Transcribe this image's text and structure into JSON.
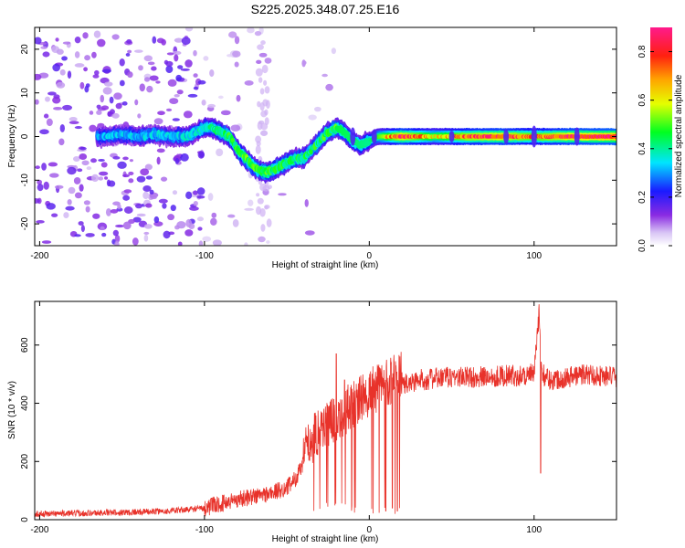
{
  "title": "S225.2025.348.07.25.E16",
  "colors": {
    "snr_line": "#e8322a",
    "frame": "#000000"
  },
  "chart_data": [
    {
      "type": "heatmap",
      "title": "S225.2025.348.07.25.E16",
      "xlabel": "Height of straight line (km)",
      "ylabel": "Frequency (Hz)",
      "xlim": [
        -203,
        150
      ],
      "ylim": [
        -25,
        25
      ],
      "x_ticks": [
        -200,
        -100,
        0,
        100
      ],
      "x_tick_labels": [
        "-200",
        "-100",
        "0",
        "100"
      ],
      "y_ticks": [
        -20,
        -10,
        0,
        10,
        20
      ],
      "y_tick_labels": [
        "-20",
        "-10",
        "0",
        "10",
        "20"
      ],
      "colorbar": {
        "label": "Normalized spectral amplitude",
        "range": [
          0,
          0.9
        ],
        "ticks": [
          0,
          0.2,
          0.4,
          0.6,
          0.8
        ],
        "tick_labels": [
          "0.0",
          "0.2",
          "0.4",
          "0.6",
          "0.8"
        ],
        "colormap": "rainbow (white-violet-blue-cyan-green-yellow-orange-red-pink)"
      },
      "ridge_frequency": {
        "x": [
          -160,
          -150,
          -140,
          -130,
          -120,
          -110,
          -100,
          -95,
          -90,
          -85,
          -80,
          -75,
          -70,
          -65,
          -60,
          -55,
          -50,
          -45,
          -40,
          -35,
          -30,
          -25,
          -20,
          -15,
          -10,
          -5,
          0,
          5,
          10,
          20,
          40,
          60,
          80,
          100,
          120,
          150
        ],
        "y": [
          0,
          0.5,
          0,
          0.5,
          0,
          0,
          2,
          2,
          1,
          0,
          -3,
          -5,
          -7,
          -8,
          -8,
          -7,
          -6,
          -5,
          -5,
          -3,
          -1,
          1,
          2,
          1,
          -1,
          -2,
          -1,
          0,
          0,
          0,
          0,
          0,
          0,
          0,
          0,
          0
        ]
      },
      "ridge_amplitude": {
        "x": [
          -200,
          -160,
          -120,
          -100,
          -80,
          -60,
          -40,
          -20,
          0,
          20,
          40,
          60,
          80,
          100,
          120,
          150
        ],
        "y": [
          0.15,
          0.35,
          0.35,
          0.4,
          0.5,
          0.5,
          0.45,
          0.5,
          0.45,
          0.8,
          0.6,
          0.75,
          0.8,
          0.7,
          0.8,
          0.85
        ]
      }
    },
    {
      "type": "line",
      "xlabel": "Height of straight line (km)",
      "ylabel": "SNR (10 * v/v)",
      "xlim": [
        -203,
        150
      ],
      "ylim": [
        0,
        750
      ],
      "x_ticks": [
        -200,
        -100,
        0,
        100
      ],
      "x_tick_labels": [
        "-200",
        "-100",
        "0",
        "100"
      ],
      "y_ticks": [
        0,
        200,
        400,
        600
      ],
      "y_tick_labels": [
        "0",
        "200",
        "400",
        "600"
      ],
      "series": [
        {
          "name": "SNR",
          "x": [
            -203,
            -180,
            -150,
            -120,
            -100,
            -90,
            -80,
            -70,
            -60,
            -50,
            -45,
            -40,
            -35,
            -30,
            -25,
            -20,
            -15,
            -10,
            -5,
            0,
            5,
            10,
            15,
            20,
            25,
            30,
            40,
            50,
            60,
            70,
            80,
            90,
            100,
            103,
            105,
            110,
            120,
            130,
            140,
            150
          ],
          "y": [
            20,
            22,
            25,
            30,
            40,
            55,
            70,
            80,
            90,
            110,
            140,
            190,
            240,
            280,
            300,
            320,
            340,
            360,
            380,
            400,
            420,
            440,
            450,
            460,
            470,
            480,
            485,
            490,
            490,
            490,
            495,
            495,
            500,
            700,
            500,
            480,
            490,
            500,
            495,
            490
          ]
        }
      ],
      "spikes": [
        {
          "x": -20,
          "y": 570
        },
        {
          "x": -15,
          "y": 480
        },
        {
          "x": 10,
          "y": 30
        },
        {
          "x": 14,
          "y": 40
        },
        {
          "x": 17,
          "y": 30
        },
        {
          "x": 103,
          "y": 740
        },
        {
          "x": 104,
          "y": 160
        }
      ]
    }
  ]
}
